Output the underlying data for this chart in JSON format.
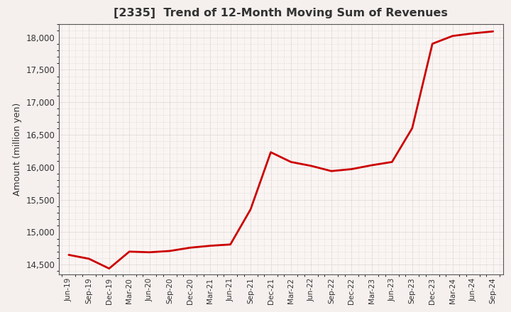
{
  "title": "[2335]  Trend of 12-Month Moving Sum of Revenues",
  "ylabel": "Amount (million yen)",
  "line_color": "#cc0000",
  "background_color": "#f5f0ee",
  "plot_bg_color": "#faf5f3",
  "grid_color": "#999999",
  "ylim": [
    14350,
    18200
  ],
  "yticks": [
    14500,
    15000,
    15500,
    16000,
    16500,
    17000,
    17500,
    18000
  ],
  "x_labels": [
    "Jun-19",
    "Sep-19",
    "Dec-19",
    "Mar-20",
    "Jun-20",
    "Sep-20",
    "Dec-20",
    "Mar-21",
    "Jun-21",
    "Sep-21",
    "Dec-21",
    "Mar-22",
    "Jun-22",
    "Sep-22",
    "Dec-22",
    "Mar-23",
    "Jun-23",
    "Sep-23",
    "Dec-23",
    "Mar-24",
    "Jun-24",
    "Sep-24"
  ],
  "data": [
    [
      "Jun-19",
      14650
    ],
    [
      "Sep-19",
      14590
    ],
    [
      "Dec-19",
      14440
    ],
    [
      "Mar-20",
      14700
    ],
    [
      "Jun-20",
      14690
    ],
    [
      "Sep-20",
      14710
    ],
    [
      "Dec-20",
      14760
    ],
    [
      "Mar-21",
      14790
    ],
    [
      "Jun-21",
      14810
    ],
    [
      "Sep-21",
      15350
    ],
    [
      "Dec-21",
      16230
    ],
    [
      "Mar-22",
      16080
    ],
    [
      "Jun-22",
      16020
    ],
    [
      "Sep-22",
      15940
    ],
    [
      "Dec-22",
      15970
    ],
    [
      "Mar-23",
      16030
    ],
    [
      "Jun-23",
      16080
    ],
    [
      "Sep-23",
      16600
    ],
    [
      "Dec-23",
      17900
    ],
    [
      "Mar-24",
      18020
    ],
    [
      "Jun-24",
      18060
    ],
    [
      "Sep-24",
      18090
    ]
  ]
}
